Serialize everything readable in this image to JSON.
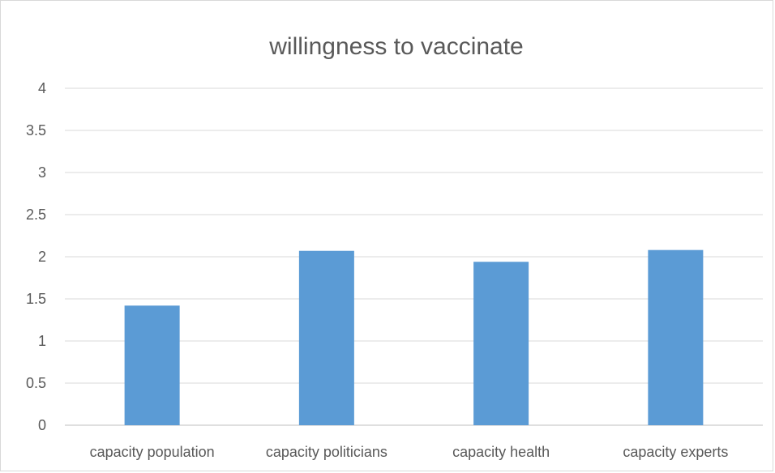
{
  "chart_data": {
    "type": "bar",
    "title": "willingness to vaccinate",
    "categories": [
      "capacity population",
      "capacity politicians",
      "capacity health",
      "capacity experts"
    ],
    "values": [
      1.42,
      2.07,
      1.94,
      2.08
    ],
    "ylim": [
      0,
      4
    ],
    "yticks": [
      "0",
      "0.5",
      "1",
      "1.5",
      "2",
      "2.5",
      "3",
      "3.5",
      "4"
    ],
    "xlabel": "",
    "ylabel": "",
    "grid": true,
    "legend": "none",
    "bar_color": "#5b9bd5"
  }
}
